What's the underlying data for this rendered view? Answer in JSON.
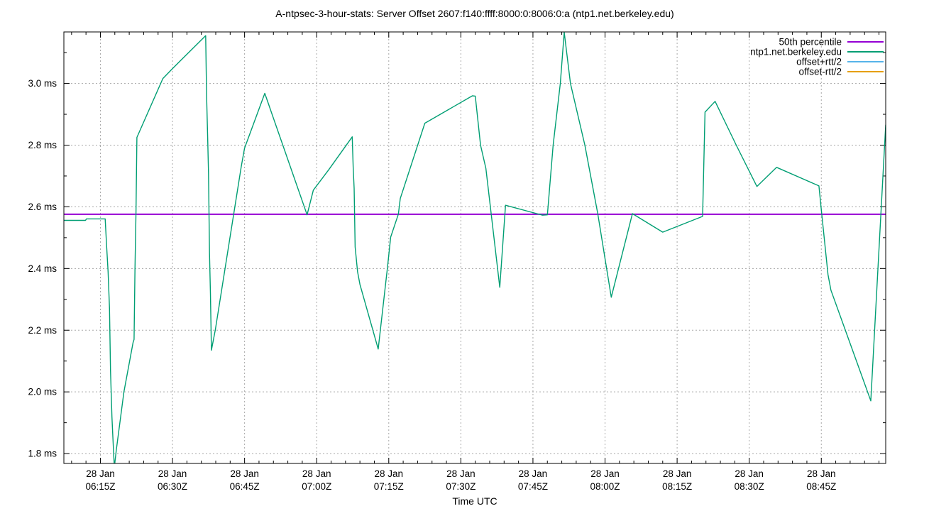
{
  "chart_data": {
    "type": "line",
    "title": "A-ntpsec-3-hour-stats: Server Offset 2607:f140:ffff:8000:0:8006:0:a (ntp1.net.berkeley.edu)",
    "xlabel": "Time UTC",
    "ylabel": "",
    "y_unit": "ms",
    "x_unit": "minutes since 00:00 UTC on 28 Jan",
    "x_domain": [
      367.4,
      538.4
    ],
    "y_domain": [
      1.768,
      3.167
    ],
    "grid": true,
    "legend_position": "top-right-inside",
    "x_major_ticks": [
      {
        "m": 375,
        "date": "28 Jan",
        "time": "06:15Z"
      },
      {
        "m": 390,
        "date": "28 Jan",
        "time": "06:30Z"
      },
      {
        "m": 405,
        "date": "28 Jan",
        "time": "06:45Z"
      },
      {
        "m": 420,
        "date": "28 Jan",
        "time": "07:00Z"
      },
      {
        "m": 435,
        "date": "28 Jan",
        "time": "07:15Z"
      },
      {
        "m": 450,
        "date": "28 Jan",
        "time": "07:30Z"
      },
      {
        "m": 465,
        "date": "28 Jan",
        "time": "07:45Z"
      },
      {
        "m": 480,
        "date": "28 Jan",
        "time": "08:00Z"
      },
      {
        "m": 495,
        "date": "28 Jan",
        "time": "08:15Z"
      },
      {
        "m": 510,
        "date": "28 Jan",
        "time": "08:30Z"
      },
      {
        "m": 525,
        "date": "28 Jan",
        "time": "08:45Z"
      }
    ],
    "x_minor_step_min": 3,
    "y_major_ticks": [
      {
        "v": 1.8,
        "label": "1.8 ms"
      },
      {
        "v": 2.0,
        "label": "2.0 ms"
      },
      {
        "v": 2.2,
        "label": "2.2 ms"
      },
      {
        "v": 2.4,
        "label": "2.4 ms"
      },
      {
        "v": 2.6,
        "label": "2.6 ms"
      },
      {
        "v": 2.8,
        "label": "2.8 ms"
      },
      {
        "v": 3.0,
        "label": "3.0 ms"
      }
    ],
    "y_minor_step": 0.1,
    "series": [
      {
        "name": "50th percentile",
        "color": "#9400d3",
        "style": "hline",
        "value": 2.576,
        "visible": true
      },
      {
        "name": "ntp1.net.berkeley.edu",
        "color": "#009e73",
        "style": "line",
        "visible": true,
        "points": [
          [
            367.4,
            2.556
          ],
          [
            371.9,
            2.556
          ],
          [
            372.1,
            2.561
          ],
          [
            376.0,
            2.561
          ],
          [
            376.3,
            2.47
          ],
          [
            376.6,
            2.39
          ],
          [
            376.9,
            2.27
          ],
          [
            377.1,
            2.07
          ],
          [
            377.4,
            1.92
          ],
          [
            377.6,
            1.85
          ],
          [
            377.9,
            1.755
          ],
          [
            378.3,
            1.81
          ],
          [
            379.9,
            2.0
          ],
          [
            381.8,
            2.16
          ],
          [
            382.0,
            2.17
          ],
          [
            382.2,
            2.4
          ],
          [
            382.4,
            2.58
          ],
          [
            382.6,
            2.825
          ],
          [
            388.0,
            3.016
          ],
          [
            390.0,
            3.048
          ],
          [
            396.9,
            3.155
          ],
          [
            397.1,
            2.96
          ],
          [
            397.3,
            2.835
          ],
          [
            397.5,
            2.71
          ],
          [
            397.7,
            2.45
          ],
          [
            397.9,
            2.32
          ],
          [
            398.1,
            2.135
          ],
          [
            398.9,
            2.2
          ],
          [
            404.3,
            2.73
          ],
          [
            405.0,
            2.79
          ],
          [
            409.2,
            2.968
          ],
          [
            418.0,
            2.574
          ],
          [
            419.3,
            2.654
          ],
          [
            422.5,
            2.72
          ],
          [
            427.4,
            2.827
          ],
          [
            427.6,
            2.725
          ],
          [
            427.8,
            2.66
          ],
          [
            428.0,
            2.47
          ],
          [
            428.5,
            2.39
          ],
          [
            429.0,
            2.348
          ],
          [
            432.8,
            2.139
          ],
          [
            434.7,
            2.4
          ],
          [
            435.4,
            2.502
          ],
          [
            437.0,
            2.576
          ],
          [
            437.4,
            2.627
          ],
          [
            442.5,
            2.871
          ],
          [
            452.4,
            2.96
          ],
          [
            453.0,
            2.959
          ],
          [
            454.1,
            2.8
          ],
          [
            455.2,
            2.725
          ],
          [
            458.1,
            2.339
          ],
          [
            459.3,
            2.605
          ],
          [
            467.0,
            2.573
          ],
          [
            468.0,
            2.574
          ],
          [
            469.2,
            2.8
          ],
          [
            470.7,
            3.0
          ],
          [
            471.5,
            3.166
          ],
          [
            472.8,
            3.0
          ],
          [
            475.8,
            2.8
          ],
          [
            478.5,
            2.576
          ],
          [
            481.3,
            2.307
          ],
          [
            485.7,
            2.578
          ],
          [
            492.0,
            2.518
          ],
          [
            500.3,
            2.569
          ],
          [
            500.8,
            2.907
          ],
          [
            502.9,
            2.942
          ],
          [
            507.3,
            2.8
          ],
          [
            511.6,
            2.666
          ],
          [
            515.7,
            2.728
          ],
          [
            524.5,
            2.668
          ],
          [
            525.1,
            2.576
          ],
          [
            526.4,
            2.38
          ],
          [
            527.0,
            2.33
          ],
          [
            535.3,
            1.971
          ],
          [
            538.4,
            2.866
          ]
        ]
      },
      {
        "name": "offset+rtt/2",
        "color": "#56b4e9",
        "style": "line",
        "visible": false,
        "points": []
      },
      {
        "name": "offset-rtt/2",
        "color": "#e69f00",
        "style": "line",
        "visible": false,
        "points": []
      }
    ]
  },
  "style_colors": {
    "grid": "#a8a8a8",
    "border": "#000000",
    "text": "#000000",
    "background": "#ffffff"
  }
}
